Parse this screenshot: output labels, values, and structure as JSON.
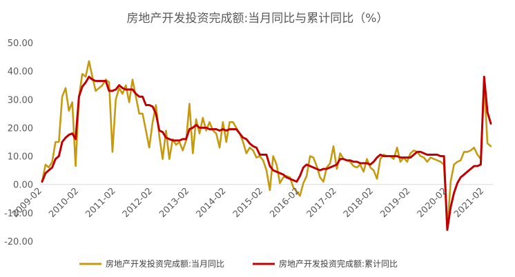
{
  "chart_data": {
    "type": "line",
    "title": "房地产开发投资完成额:当月同比与累计同比（%）",
    "xlabel": "",
    "ylabel": "",
    "ylim": [
      -20,
      50
    ],
    "yticks": [
      "50.00",
      "40.00",
      "30.00",
      "20.00",
      "10.00",
      "0.00",
      "-10.00",
      "-20.00"
    ],
    "x_tick_labels": [
      "2009-02",
      "2010-02",
      "2011-02",
      "2012-02",
      "2013-02",
      "2014-02",
      "2015-02",
      "2016-02",
      "2017-02",
      "2018-02",
      "2019-02",
      "2020-02",
      "2021-02"
    ],
    "grid": false,
    "legend": "bottom",
    "x": [
      "2009-02",
      "2009-03",
      "2009-04",
      "2009-05",
      "2009-06",
      "2009-07",
      "2009-08",
      "2009-09",
      "2009-10",
      "2009-11",
      "2009-12",
      "2010-02",
      "2010-03",
      "2010-04",
      "2010-05",
      "2010-06",
      "2010-07",
      "2010-08",
      "2010-09",
      "2010-10",
      "2010-11",
      "2010-12",
      "2011-02",
      "2011-03",
      "2011-04",
      "2011-05",
      "2011-06",
      "2011-07",
      "2011-08",
      "2011-09",
      "2011-10",
      "2011-11",
      "2011-12",
      "2012-02",
      "2012-03",
      "2012-04",
      "2012-05",
      "2012-06",
      "2012-07",
      "2012-08",
      "2012-09",
      "2012-10",
      "2012-11",
      "2012-12",
      "2013-02",
      "2013-03",
      "2013-04",
      "2013-05",
      "2013-06",
      "2013-07",
      "2013-08",
      "2013-09",
      "2013-10",
      "2013-11",
      "2013-12",
      "2014-02",
      "2014-03",
      "2014-04",
      "2014-05",
      "2014-06",
      "2014-07",
      "2014-08",
      "2014-09",
      "2014-10",
      "2014-11",
      "2014-12",
      "2015-02",
      "2015-03",
      "2015-04",
      "2015-05",
      "2015-06",
      "2015-07",
      "2015-08",
      "2015-09",
      "2015-10",
      "2015-11",
      "2015-12",
      "2016-02",
      "2016-03",
      "2016-04",
      "2016-05",
      "2016-06",
      "2016-07",
      "2016-08",
      "2016-09",
      "2016-10",
      "2016-11",
      "2016-12",
      "2017-02",
      "2017-03",
      "2017-04",
      "2017-05",
      "2017-06",
      "2017-07",
      "2017-08",
      "2017-09",
      "2017-10",
      "2017-11",
      "2017-12",
      "2018-02",
      "2018-03",
      "2018-04",
      "2018-05",
      "2018-06",
      "2018-07",
      "2018-08",
      "2018-09",
      "2018-10",
      "2018-11",
      "2018-12",
      "2019-02",
      "2019-03",
      "2019-04",
      "2019-05",
      "2019-06",
      "2019-07",
      "2019-08",
      "2019-09",
      "2019-10",
      "2019-11",
      "2019-12",
      "2020-02",
      "2020-03",
      "2020-04",
      "2020-05",
      "2020-06",
      "2020-07",
      "2020-08",
      "2020-09",
      "2020-10",
      "2020-11",
      "2020-12",
      "2021-02",
      "2021-03",
      "2021-04"
    ],
    "series": [
      {
        "name": "房地产开发投资完成额:当月同比",
        "color": "#C59A0E",
        "values": [
          1.0,
          7.0,
          6.0,
          8.0,
          15.0,
          15.0,
          31.0,
          34.0,
          26.0,
          29.0,
          6.5,
          31.0,
          39.0,
          38.0,
          43.5,
          38.0,
          33.0,
          34.0,
          35.0,
          37.0,
          36.0,
          11.5,
          30.0,
          34.0,
          32.0,
          35.0,
          29.0,
          37.0,
          31.0,
          25.0,
          25.0,
          19.0,
          13.0,
          22.0,
          28.0,
          17.0,
          9.0,
          19.0,
          9.0,
          16.0,
          14.0,
          15.0,
          12.0,
          15.5,
          28.5,
          11.0,
          23.0,
          18.0,
          23.5,
          19.0,
          22.0,
          19.0,
          18.0,
          13.0,
          22.0,
          15.0,
          22.0,
          22.0,
          20.0,
          18.0,
          15.0,
          11.0,
          13.0,
          12.0,
          9.5,
          10.0,
          8.5,
          5.0,
          -2.0,
          10.0,
          7.0,
          0.5,
          2.5,
          3.0,
          2.5,
          -1.0,
          -2.5,
          -4.0,
          0.5,
          3.0,
          10.0,
          9.5,
          6.5,
          2.5,
          1.0,
          6.0,
          7.5,
          13.5,
          5.5,
          11.0,
          9.0,
          8.5,
          8.0,
          6.5,
          6.0,
          7.0,
          4.5,
          9.0,
          6.0,
          5.0,
          2.0,
          9.0,
          10.5,
          10.0,
          10.0,
          9.0,
          13.0,
          8.0,
          9.5,
          8.0,
          11.0,
          12.0,
          11.5,
          10.0,
          9.5,
          8.0,
          9.5,
          9.0,
          8.5,
          8.0,
          7.0,
          -16.0,
          1.0,
          7.0,
          8.0,
          8.5,
          11.5,
          11.5,
          12.0,
          13.0,
          10.5,
          9.0,
          36.0,
          14.5,
          13.5
        ]
      },
      {
        "name": "房地产开发投资完成额:累计同比",
        "color": "#C00000",
        "values": [
          1.0,
          4.0,
          5.0,
          6.0,
          9.0,
          10.0,
          15.0,
          16.5,
          17.5,
          18.0,
          16.0,
          31.0,
          34.5,
          36.0,
          38.0,
          37.0,
          36.5,
          36.5,
          36.5,
          36.5,
          33.0,
          33.0,
          33.5,
          35.0,
          34.0,
          33.5,
          33.5,
          33.5,
          32.0,
          31.0,
          31.0,
          28.0,
          28.0,
          27.5,
          25.0,
          19.0,
          18.5,
          16.5,
          16.0,
          15.5,
          15.5,
          15.5,
          16.0,
          16.0,
          19.5,
          20.0,
          21.0,
          20.0,
          20.0,
          20.0,
          19.5,
          19.5,
          19.5,
          19.0,
          19.5,
          19.0,
          19.5,
          19.5,
          19.5,
          18.0,
          16.5,
          16.0,
          14.5,
          13.5,
          13.0,
          10.5,
          10.5,
          10.5,
          6.5,
          5.0,
          4.5,
          4.0,
          3.5,
          2.5,
          2.0,
          1.5,
          1.0,
          3.0,
          6.0,
          7.0,
          6.5,
          6.0,
          5.5,
          5.0,
          5.5,
          5.5,
          6.0,
          6.5,
          7.0,
          9.0,
          9.0,
          8.5,
          8.5,
          8.0,
          8.0,
          7.5,
          7.5,
          7.5,
          7.0,
          8.0,
          9.5,
          10.5,
          10.0,
          10.0,
          10.0,
          10.0,
          10.0,
          9.5,
          9.5,
          9.5,
          9.5,
          10.5,
          11.5,
          11.5,
          11.0,
          10.5,
          10.5,
          10.5,
          10.5,
          10.0,
          10.0,
          -16.0,
          -8.0,
          -3.0,
          0.5,
          2.5,
          3.5,
          4.5,
          5.5,
          6.5,
          6.5,
          7.0,
          38.0,
          25.5,
          21.5
        ]
      }
    ]
  }
}
